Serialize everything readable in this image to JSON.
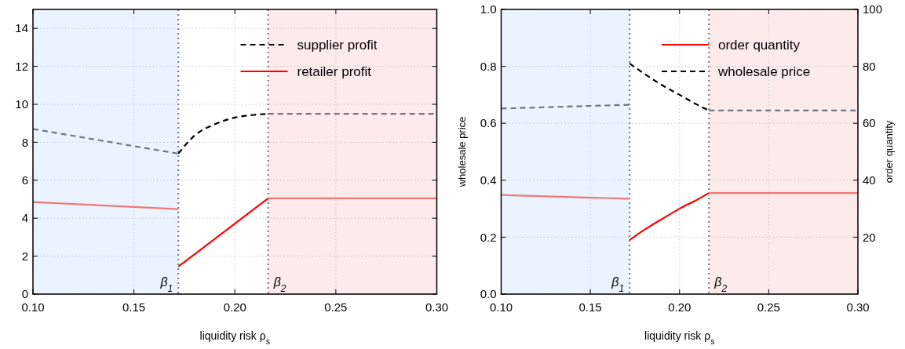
{
  "chart_data": [
    {
      "type": "line",
      "xlabel": "liquidity risk ρ$_{s}$",
      "xlim": [
        0.1,
        0.3
      ],
      "xticks": [
        {
          "value": 0.1,
          "label": "0.10"
        },
        {
          "value": 0.15,
          "label": "0.15"
        },
        {
          "value": 0.2,
          "label": "0.20"
        },
        {
          "value": 0.25,
          "label": "0.25"
        },
        {
          "value": 0.3,
          "label": "0.30"
        }
      ],
      "ylim": [
        0,
        15
      ],
      "yticks": [
        0,
        2,
        4,
        6,
        8,
        10,
        12,
        14
      ],
      "grid": true,
      "legend": "top right",
      "bands": [
        {
          "axis": "x",
          "from": 0.1,
          "to": 0.172,
          "color": "#ebf4fe"
        },
        {
          "axis": "x",
          "from": 0.2165,
          "to": 0.3,
          "color": "#fdeaea"
        }
      ],
      "ref_lines": [
        {
          "axis": "x",
          "value": 0.172,
          "label": "β$_{1}$",
          "color": "#808080",
          "line_style": "dotted"
        },
        {
          "axis": "x",
          "value": 0.2165,
          "label": "β$_{2}$",
          "color": "#808080",
          "line_style": "dotted"
        }
      ],
      "series": [
        {
          "name": "supplier profit",
          "color": "#000000",
          "line_style": "dashed",
          "x": [
            0.172,
            0.18,
            0.19,
            0.2,
            0.21,
            0.2165
          ],
          "values": [
            7.4,
            8.35,
            8.95,
            9.3,
            9.45,
            9.5
          ]
        },
        {
          "name": "retailer profit",
          "color": "#ff0000",
          "line_style": "solid",
          "x": [
            0.172,
            0.2165
          ],
          "values": [
            1.45,
            5.05
          ]
        },
        {
          "color": "#6e7682",
          "line_style": "dashed",
          "x": [
            0.1,
            0.172
          ],
          "values": [
            8.7,
            7.4
          ]
        },
        {
          "color": "#6e7682",
          "line_style": "dashed",
          "x": [
            0.2165,
            0.3
          ],
          "values": [
            9.5,
            9.5
          ]
        },
        {
          "color": "#f07878",
          "line_style": "solid",
          "x": [
            0.1,
            0.172
          ],
          "values": [
            4.85,
            4.48
          ]
        },
        {
          "color": "#f07878",
          "line_style": "solid",
          "x": [
            0.2165,
            0.3
          ],
          "values": [
            5.05,
            5.05
          ]
        }
      ]
    },
    {
      "type": "line",
      "xlabel": "liquidity risk ρ$_{s}$",
      "ylabel": "wholesale price",
      "y2label": "order quantity",
      "xlim": [
        0.1,
        0.3
      ],
      "xticks": [
        {
          "value": 0.1,
          "label": "0.10"
        },
        {
          "value": 0.15,
          "label": "0.15"
        },
        {
          "value": 0.2,
          "label": "0.20"
        },
        {
          "value": 0.25,
          "label": "0.25"
        },
        {
          "value": 0.3,
          "label": "0.30"
        }
      ],
      "ylim": [
        0,
        1
      ],
      "yticks": [
        {
          "value": 0,
          "label": "0.0"
        },
        0.2,
        0.4,
        0.6,
        0.8,
        {
          "value": 1,
          "label": "1.0"
        }
      ],
      "y2lim": [
        0,
        100
      ],
      "y2ticks": [
        20,
        40,
        60,
        80,
        100
      ],
      "grid": true,
      "legend": "top right",
      "bands": [
        {
          "axis": "x",
          "from": 0.1,
          "to": 0.172,
          "color": "#ebf4fe"
        },
        {
          "axis": "x",
          "from": 0.2165,
          "to": 0.3,
          "color": "#fdeaea"
        }
      ],
      "ref_lines": [
        {
          "axis": "x",
          "value": 0.172,
          "label": "β$_{1}$",
          "color": "#808080",
          "line_style": "dotted"
        },
        {
          "axis": "x",
          "value": 0.2165,
          "label": "β$_{2}$",
          "color": "#808080",
          "line_style": "dotted"
        }
      ],
      "series": [
        {
          "name": "order quantity",
          "color": "#ff0000",
          "line_style": "solid",
          "axis": "y2",
          "x": [
            0.172,
            0.18,
            0.19,
            0.2,
            0.21,
            0.2165
          ],
          "values": [
            19,
            22.5,
            26.3,
            30,
            33.2,
            35.5
          ]
        },
        {
          "name": "wholesale price",
          "color": "#000000",
          "line_style": "dashed",
          "x": [
            0.172,
            0.18,
            0.19,
            0.2,
            0.21,
            0.2165
          ],
          "values": [
            0.81,
            0.775,
            0.735,
            0.7,
            0.665,
            0.645
          ]
        },
        {
          "color": "#6e7682",
          "line_style": "dashed",
          "x": [
            0.1,
            0.172
          ],
          "values": [
            0.652,
            0.665
          ]
        },
        {
          "color": "#6e7682",
          "line_style": "dashed",
          "x": [
            0.2165,
            0.3
          ],
          "values": [
            0.645,
            0.645
          ]
        },
        {
          "color": "#f07878",
          "line_style": "solid",
          "axis": "y2",
          "x": [
            0.1,
            0.172
          ],
          "values": [
            34.8,
            33.5
          ]
        },
        {
          "color": "#f07878",
          "line_style": "solid",
          "axis": "y2",
          "x": [
            0.2165,
            0.3
          ],
          "values": [
            35.5,
            35.5
          ]
        }
      ]
    }
  ]
}
